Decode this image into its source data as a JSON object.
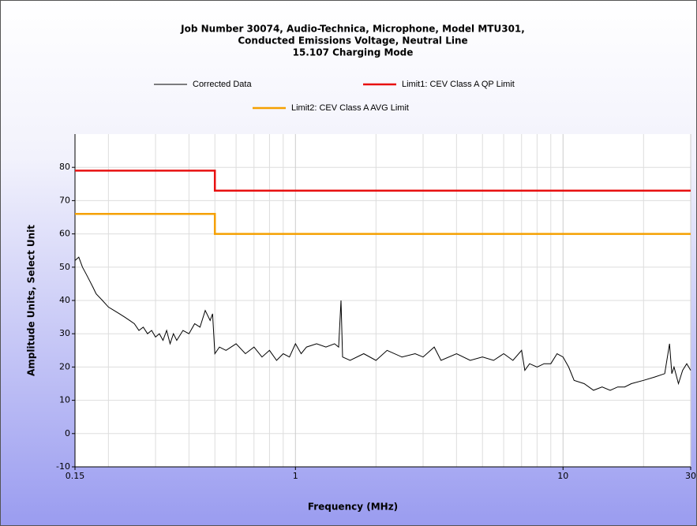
{
  "chart_data": {
    "type": "line",
    "title": [
      "Job Number 30074, Audio-Technica, Microphone, Model MTU301,",
      "Conducted Emissions Voltage, Neutral Line",
      "15.107 Charging Mode"
    ],
    "xlabel": "Frequency (MHz)",
    "ylabel": "Amplitude Units, Select Unit",
    "xscale": "log",
    "xlim": [
      0.15,
      30
    ],
    "ylim": [
      -10,
      90
    ],
    "xticks": [
      0.15,
      1,
      10,
      30
    ],
    "xminor_ticks": [
      0.2,
      0.3,
      0.4,
      0.5,
      0.6,
      0.7,
      0.8,
      0.9,
      2,
      3,
      4,
      5,
      6,
      7,
      8,
      9,
      20
    ],
    "yticks": [
      -10,
      0,
      10,
      20,
      30,
      40,
      50,
      60,
      70,
      80
    ],
    "grid": true,
    "legend": "top",
    "series": [
      {
        "name": "Corrected Data",
        "color": "#000000",
        "x": [
          0.15,
          0.155,
          0.16,
          0.165,
          0.17,
          0.175,
          0.18,
          0.19,
          0.2,
          0.21,
          0.22,
          0.23,
          0.24,
          0.25,
          0.26,
          0.27,
          0.28,
          0.29,
          0.3,
          0.31,
          0.32,
          0.33,
          0.34,
          0.35,
          0.36,
          0.38,
          0.4,
          0.42,
          0.44,
          0.46,
          0.48,
          0.49,
          0.5,
          0.52,
          0.55,
          0.6,
          0.65,
          0.7,
          0.75,
          0.8,
          0.85,
          0.9,
          0.95,
          1.0,
          1.05,
          1.1,
          1.2,
          1.3,
          1.4,
          1.45,
          1.48,
          1.5,
          1.6,
          1.8,
          2.0,
          2.2,
          2.5,
          2.8,
          3.0,
          3.3,
          3.5,
          4.0,
          4.5,
          5,
          5.5,
          6,
          6.5,
          7,
          7.2,
          7.5,
          8,
          8.5,
          9,
          9.5,
          10,
          10.5,
          11,
          12,
          13,
          14,
          15,
          16,
          17,
          18,
          20,
          22,
          24,
          25,
          25.5,
          26,
          27,
          28,
          29,
          30
        ],
        "values": [
          52,
          53,
          50,
          48,
          46,
          44,
          42,
          40,
          38,
          37,
          36,
          35,
          34,
          33,
          31,
          32,
          30,
          31,
          29,
          30,
          28,
          31,
          27,
          30,
          28,
          31,
          30,
          33,
          32,
          37,
          34,
          36,
          24,
          26,
          25,
          27,
          24,
          26,
          23,
          25,
          22,
          24,
          23,
          27,
          24,
          26,
          27,
          26,
          27,
          26,
          40,
          23,
          22,
          24,
          22,
          25,
          23,
          24,
          23,
          26,
          22,
          24,
          22,
          23,
          22,
          24,
          22,
          25,
          19,
          21,
          20,
          21,
          21,
          24,
          23,
          20,
          16,
          15,
          13,
          14,
          13,
          14,
          14,
          15,
          16,
          17,
          18,
          27,
          18,
          20,
          15,
          19,
          21,
          19
        ]
      },
      {
        "name": "Limit1: CEV Class A QP Limit",
        "color": "#e81010",
        "x": [
          0.15,
          0.5,
          0.5,
          30
        ],
        "values": [
          79,
          79,
          73,
          73
        ]
      },
      {
        "name": "Limit2: CEV Class A AVG Limit",
        "color": "#f5a000",
        "x": [
          0.15,
          0.5,
          0.5,
          30
        ],
        "values": [
          66,
          66,
          60,
          60
        ]
      }
    ]
  }
}
